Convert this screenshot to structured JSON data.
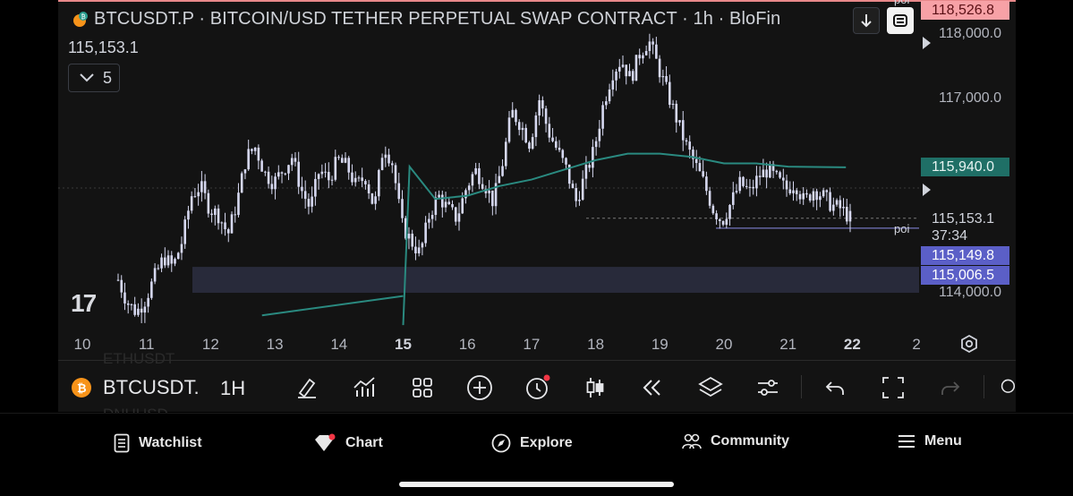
{
  "header": {
    "title": "BTCUSDT.P · BITCOIN/USD TETHER PERPETUAL SWAP CONTRACT · 1h · BloFin",
    "price": "115,153.1",
    "collapse_count": "5",
    "logo_text": "17"
  },
  "price_axis": {
    "labels": [
      "118,000.0",
      "117,000.0",
      "114,000.0"
    ],
    "tag_top": "118,526.8",
    "tag_top_label": "poi",
    "tag_vwap": "115,940.0",
    "current_price": "115,153.1",
    "countdown": "37:34",
    "tag_level1": "115,149.8",
    "tag_level2": "115,006.5",
    "poi_label": "poi"
  },
  "time_axis": {
    "labels": [
      {
        "text": "10",
        "bold": false
      },
      {
        "text": "11",
        "bold": false
      },
      {
        "text": "12",
        "bold": false
      },
      {
        "text": "13",
        "bold": false
      },
      {
        "text": "14",
        "bold": false
      },
      {
        "text": "15",
        "bold": true
      },
      {
        "text": "16",
        "bold": false
      },
      {
        "text": "17",
        "bold": false
      },
      {
        "text": "18",
        "bold": false
      },
      {
        "text": "19",
        "bold": false
      },
      {
        "text": "20",
        "bold": false
      },
      {
        "text": "21",
        "bold": false
      },
      {
        "text": "22",
        "bold": true
      },
      {
        "text": "2",
        "bold": false
      }
    ]
  },
  "toolbar": {
    "symbol": "BTCUSDT.",
    "interval": "1H",
    "ghost_text_1": "ETHUSDT",
    "ghost_text_2": "DNHUSD"
  },
  "bottom_nav": {
    "items": [
      "Watchlist",
      "Chart",
      "Explore",
      "Community",
      "Menu"
    ]
  },
  "colors": {
    "background": "#131313",
    "candle": "#d6d8f0",
    "vwap": "#2a8a80",
    "zone": "#2b2e3f",
    "accent_red": "#f7a1a6",
    "accent_blue": "#5b5fc7",
    "bitcoin_orange": "#f7931a"
  },
  "chart_data": {
    "type": "candlestick",
    "symbol": "BTCUSDT.P",
    "interval": "1h",
    "x": [
      "10",
      "11",
      "12",
      "13",
      "14",
      "15",
      "16",
      "17",
      "18",
      "19",
      "20",
      "21",
      "22"
    ],
    "ylim": [
      113600,
      118500
    ],
    "close_path": [
      114200,
      113850,
      113700,
      113900,
      114250,
      114550,
      114400,
      114800,
      115500,
      115650,
      115300,
      115200,
      114900,
      115400,
      116100,
      116250,
      115850,
      115700,
      115900,
      116100,
      115600,
      115300,
      115900,
      115750,
      116050,
      115950,
      115650,
      115800,
      115300,
      116300,
      116000,
      115050,
      114800,
      114600,
      115200,
      115500,
      115300,
      115150,
      115600,
      115900,
      115700,
      115400,
      116000,
      116800,
      116600,
      116300,
      117000,
      116500,
      116200,
      115900,
      115400,
      115800,
      116200,
      116900,
      117400,
      117600,
      117300,
      117700,
      117900,
      117500,
      117100,
      116700,
      116300,
      116000,
      115700,
      115300,
      115100,
      115400,
      115700,
      115550,
      115800,
      115900,
      115750,
      115600,
      115700,
      115400,
      115600,
      115500,
      115350,
      115300,
      115153
    ],
    "vwap": [
      [
        15.0,
        113500
      ],
      [
        15.1,
        115950
      ],
      [
        15.5,
        115450
      ],
      [
        16.0,
        115500
      ],
      [
        16.5,
        115650
      ],
      [
        17.0,
        115750
      ],
      [
        17.5,
        115900
      ],
      [
        18.0,
        116050
      ],
      [
        18.5,
        116150
      ],
      [
        19.0,
        116150
      ],
      [
        19.5,
        116100
      ],
      [
        20.0,
        116000
      ],
      [
        20.5,
        116000
      ],
      [
        21.0,
        115950
      ],
      [
        21.9,
        115940
      ]
    ],
    "vwap_pre": [
      [
        12.8,
        113650
      ],
      [
        15.0,
        113950
      ]
    ],
    "levels": {
      "poi": 115149.8,
      "level2": 115006.5,
      "current": 115153.1
    },
    "zone": [
      114000,
      114400
    ]
  }
}
